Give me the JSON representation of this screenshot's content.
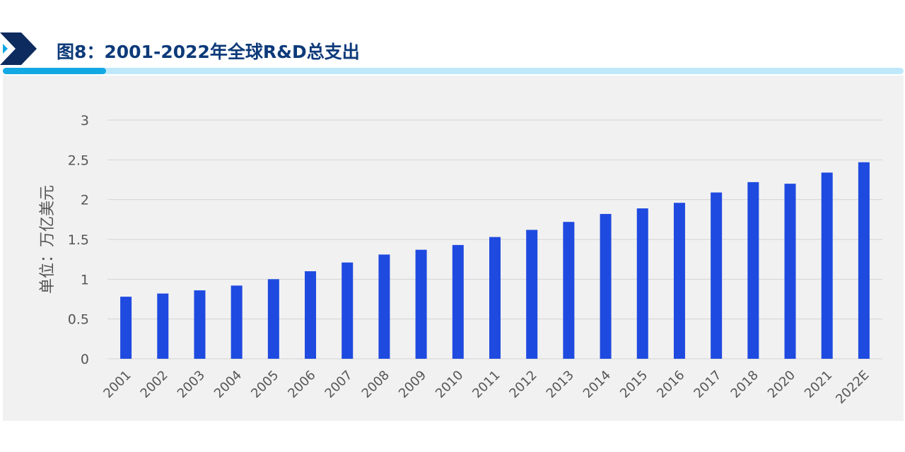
{
  "header": {
    "title": "图8：2001-2022年全球R&D总支出"
  },
  "colors": {
    "title": "#0d3a7a",
    "bar": "#1f4ae0",
    "accent_dark": "#12a8e4",
    "accent_light": "#bfe9fb",
    "panel_bg": "#f1f1f1",
    "grid": "#d4d4d4",
    "text": "#555555"
  },
  "chart_data": {
    "type": "bar",
    "title": "图8：2001-2022年全球R&D总支出",
    "ylabel": "单位：万亿美元",
    "xlabel": "",
    "ylim": [
      0,
      3
    ],
    "yticks": [
      "0",
      "0.5",
      "1",
      "1.5",
      "2",
      "2.5",
      "3"
    ],
    "grid": true,
    "categories": [
      "2001",
      "2002",
      "2003",
      "2004",
      "2005",
      "2006",
      "2007",
      "2008",
      "2009",
      "2010",
      "2011",
      "2012",
      "2013",
      "2014",
      "2015",
      "2016",
      "2017",
      "2018",
      "2020",
      "2021",
      "2022E"
    ],
    "values": [
      0.78,
      0.82,
      0.86,
      0.92,
      1.0,
      1.1,
      1.21,
      1.31,
      1.37,
      1.43,
      1.53,
      1.62,
      1.72,
      1.82,
      1.89,
      1.96,
      2.09,
      2.22,
      2.2,
      2.34,
      2.47
    ]
  }
}
